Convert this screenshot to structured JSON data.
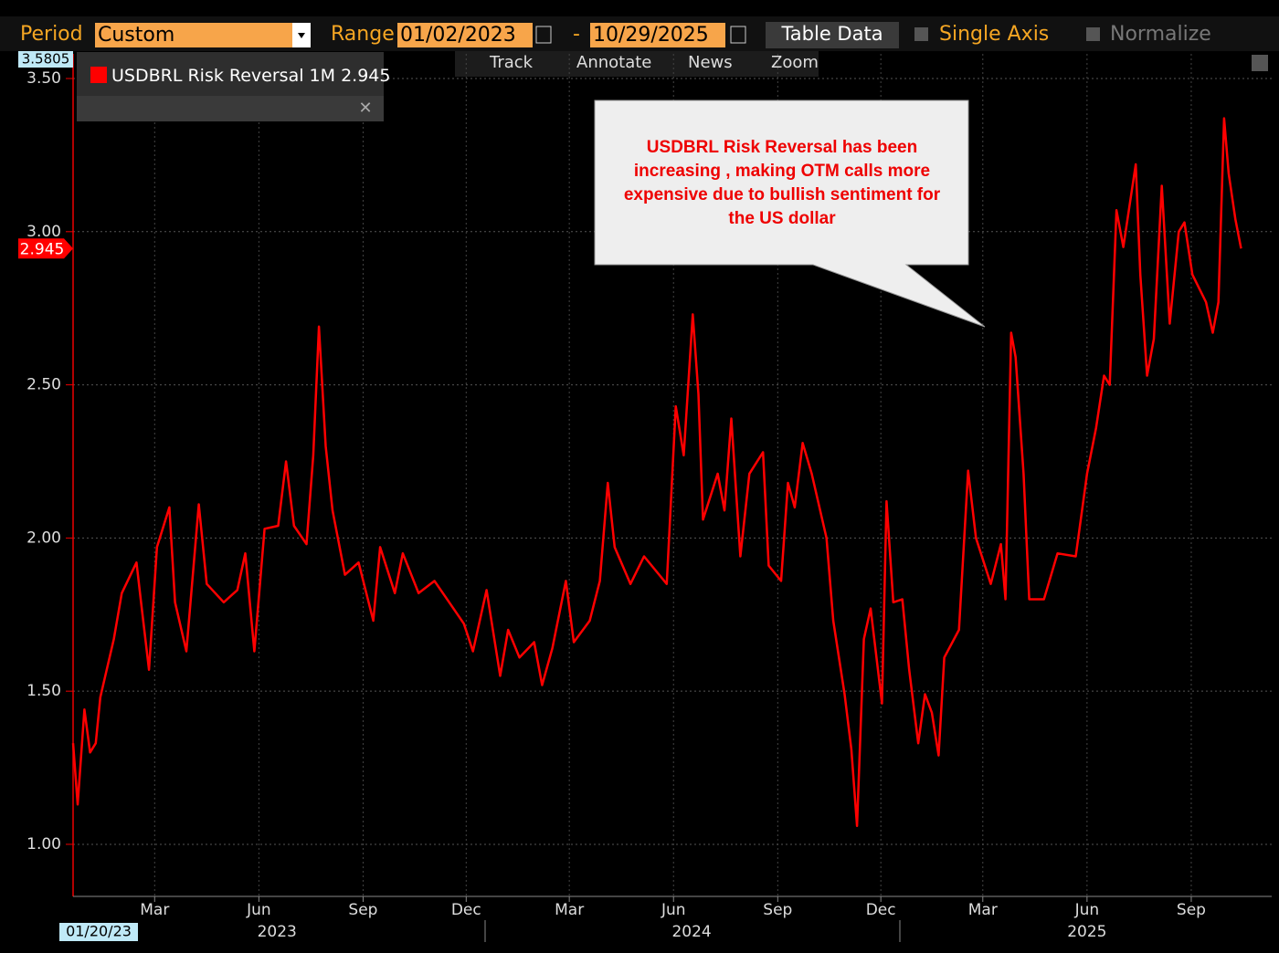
{
  "toolbar": {
    "period_label": "Period",
    "period": "Custom",
    "range_label": "Range",
    "start": "01/02/2023",
    "dash": "-",
    "end": "10/29/2025",
    "table_button": "Table Data",
    "single_axis": "Single Axis",
    "normalize": "Normalize",
    "tools": [
      "Track",
      "Annotate",
      "News",
      "Zoom"
    ]
  },
  "chart_data": {
    "type": "line",
    "series": [
      {
        "name": "USDBRL Risk Reversal 1M",
        "color": "#ff0000",
        "last_label": "2.945",
        "x": [
          "2023-01-02",
          "2023-01-06",
          "2023-01-12",
          "2023-01-17",
          "2023-01-22",
          "2023-01-26",
          "2023-02-07",
          "2023-02-14",
          "2023-02-27",
          "2023-03-03",
          "2023-03-10",
          "2023-03-17",
          "2023-03-28",
          "2023-04-02",
          "2023-04-12",
          "2023-04-23",
          "2023-04-30",
          "2023-05-15",
          "2023-05-27",
          "2023-06-03",
          "2023-06-11",
          "2023-06-20",
          "2023-07-02",
          "2023-07-09",
          "2023-07-16",
          "2023-07-27",
          "2023-08-02",
          "2023-08-07",
          "2023-08-13",
          "2023-08-19",
          "2023-08-30",
          "2023-09-11",
          "2023-09-24",
          "2023-09-30",
          "2023-10-13",
          "2023-10-20",
          "2023-11-03",
          "2023-11-17",
          "2023-11-30",
          "2023-12-13",
          "2023-12-21",
          "2024-01-02",
          "2024-01-14",
          "2024-01-21",
          "2024-01-31",
          "2024-02-13",
          "2024-02-20",
          "2024-02-29",
          "2024-03-12",
          "2024-03-19",
          "2024-04-02",
          "2024-04-11",
          "2024-04-18",
          "2024-04-24",
          "2024-05-08",
          "2024-05-20",
          "2024-06-09",
          "2024-06-17",
          "2024-06-24",
          "2024-07-02",
          "2024-07-07",
          "2024-07-11",
          "2024-07-24",
          "2024-07-30",
          "2024-08-05",
          "2024-08-13",
          "2024-08-21",
          "2024-09-02",
          "2024-09-07",
          "2024-09-18",
          "2024-09-24",
          "2024-09-30",
          "2024-10-07",
          "2024-10-15",
          "2024-10-28",
          "2024-11-03",
          "2024-11-13",
          "2024-11-19",
          "2024-11-24",
          "2024-11-30",
          "2024-12-06",
          "2024-12-16",
          "2024-12-20",
          "2024-12-26",
          "2025-01-03",
          "2025-01-09",
          "2025-01-17",
          "2025-01-23",
          "2025-01-29",
          "2025-02-04",
          "2025-02-09",
          "2025-02-22",
          "2025-03-02",
          "2025-03-09",
          "2025-03-22",
          "2025-03-31",
          "2025-04-04",
          "2025-04-09",
          "2025-04-13",
          "2025-04-20",
          "2025-04-25",
          "2025-05-08",
          "2025-05-20",
          "2025-06-05",
          "2025-06-15",
          "2025-06-23",
          "2025-06-30",
          "2025-07-05",
          "2025-07-11",
          "2025-07-17",
          "2025-07-28",
          "2025-08-01",
          "2025-08-07",
          "2025-08-13",
          "2025-08-20",
          "2025-08-27",
          "2025-09-04",
          "2025-09-09",
          "2025-09-16",
          "2025-09-28",
          "2025-10-04",
          "2025-10-09",
          "2025-10-14",
          "2025-10-18",
          "2025-10-24",
          "2025-10-29"
        ],
        "values": [
          1.33,
          1.13,
          1.44,
          1.3,
          1.33,
          1.48,
          1.67,
          1.82,
          1.92,
          1.79,
          1.57,
          1.97,
          2.1,
          1.79,
          1.63,
          2.11,
          1.85,
          1.79,
          1.83,
          1.95,
          1.63,
          2.03,
          2.04,
          2.25,
          2.04,
          1.98,
          2.27,
          2.69,
          2.3,
          2.09,
          1.88,
          1.92,
          1.73,
          1.97,
          1.82,
          1.95,
          1.82,
          1.86,
          1.79,
          1.72,
          1.63,
          1.83,
          1.55,
          1.7,
          1.61,
          1.66,
          1.52,
          1.64,
          1.86,
          1.66,
          1.73,
          1.86,
          2.18,
          1.97,
          1.85,
          1.94,
          1.85,
          2.43,
          2.27,
          2.73,
          2.47,
          2.06,
          2.21,
          2.09,
          2.39,
          1.94,
          2.21,
          2.28,
          1.91,
          1.86,
          2.18,
          2.1,
          2.31,
          2.21,
          2.0,
          1.73,
          1.49,
          1.31,
          1.06,
          1.67,
          1.77,
          1.46,
          2.12,
          1.79,
          1.8,
          1.57,
          1.33,
          1.49,
          1.43,
          1.29,
          1.61,
          1.7,
          2.22,
          2.0,
          1.85,
          1.98,
          1.8,
          2.67,
          2.59,
          2.21,
          1.8,
          1.8,
          1.95,
          1.94,
          2.21,
          2.36,
          2.53,
          2.5,
          3.07,
          2.95,
          3.22,
          2.86,
          2.53,
          2.65,
          3.15,
          2.7,
          3.0,
          3.03,
          2.86,
          2.77,
          2.67,
          2.77,
          3.37,
          3.19,
          3.04,
          2.945
        ]
      }
    ],
    "xlim": [
      "2023-01-02",
      "2025-11-25"
    ],
    "xticks": [
      {
        "value": "2023-03-15",
        "label": "Mar"
      },
      {
        "value": "2023-06-15",
        "label": "Jun"
      },
      {
        "value": "2023-09-15",
        "label": "Sep"
      },
      {
        "value": "2023-12-15",
        "label": "Dec"
      },
      {
        "value": "2024-03-15",
        "label": "Mar"
      },
      {
        "value": "2024-06-15",
        "label": "Jun"
      },
      {
        "value": "2024-09-15",
        "label": "Sep"
      },
      {
        "value": "2024-12-15",
        "label": "Dec"
      },
      {
        "value": "2025-03-15",
        "label": "Mar"
      },
      {
        "value": "2025-06-15",
        "label": "Jun"
      },
      {
        "value": "2025-09-15",
        "label": "Sep"
      }
    ],
    "year_ticks": [
      {
        "value": "2023-07-01",
        "label": "2023"
      },
      {
        "value": "2024-07-01",
        "label": "2024"
      },
      {
        "value": "2025-06-15",
        "label": "2025"
      }
    ],
    "x_start_label": "01/20/23",
    "ylim": [
      0.83,
      3.5805
    ],
    "yticks": [
      {
        "value": 1,
        "label": "1.00"
      },
      {
        "value": 1.5,
        "label": "1.50"
      },
      {
        "value": 2,
        "label": "2.00"
      },
      {
        "value": 2.5,
        "label": "2.50"
      },
      {
        "value": 3,
        "label": "3.00"
      },
      {
        "value": 3.5,
        "label": "3.50"
      }
    ],
    "grid": true,
    "annotation": [
      "USDBRL Risk Reversal has been",
      "increasing , making OTM calls more",
      "expensive due to bullish sentiment for",
      "the US dollar"
    ]
  }
}
